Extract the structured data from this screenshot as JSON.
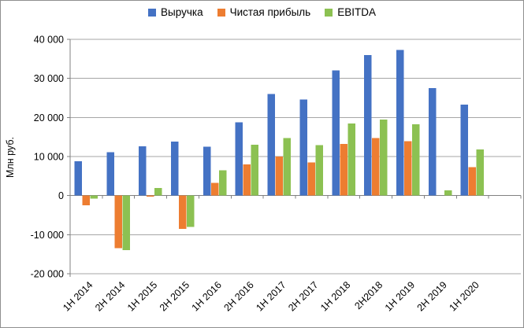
{
  "chart_data": {
    "type": "bar",
    "title": "",
    "ylabel": "Млн руб.",
    "categories": [
      "1H 2014",
      "2H 2014",
      "1H 2015",
      "2H 2015",
      "1H 2016",
      "2H 2016",
      "1H 2017",
      "2H 2017",
      "1H 2018",
      "2H2018",
      "1H 2019",
      "2H 2019",
      "1H 2020"
    ],
    "series": [
      {
        "name": "Выручка",
        "color": "#4472C4",
        "values": [
          8800,
          11100,
          12600,
          13800,
          12500,
          18800,
          26000,
          24600,
          32000,
          36000,
          37300,
          27500,
          23300
        ]
      },
      {
        "name": "Чистая прибыль",
        "color": "#ED7D31",
        "values": [
          -2500,
          -13400,
          -300,
          -8500,
          3300,
          8000,
          10000,
          8500,
          13200,
          14700,
          13900,
          0,
          7300
        ]
      },
      {
        "name": "EBITDA",
        "color": "#8CC152",
        "values": [
          -800,
          -14000,
          1900,
          -8000,
          6500,
          13000,
          14700,
          12900,
          18500,
          19500,
          18300,
          1300,
          11800
        ]
      }
    ],
    "ylim": [
      -20000,
      40000
    ],
    "yticks": [
      40000,
      30000,
      20000,
      10000,
      0,
      -10000,
      -20000
    ],
    "ytick_labels": [
      "40 000",
      "30 000",
      "20 000",
      "10 000",
      "0",
      "-10 000",
      "-20 000"
    ],
    "grid": true,
    "legend_position": "top",
    "extra_empty_category_slots": 1,
    "colors": {
      "gridline": "#A6A6A6",
      "axis": "#808080",
      "text": "#000000",
      "background": "#FFFFFF"
    }
  }
}
